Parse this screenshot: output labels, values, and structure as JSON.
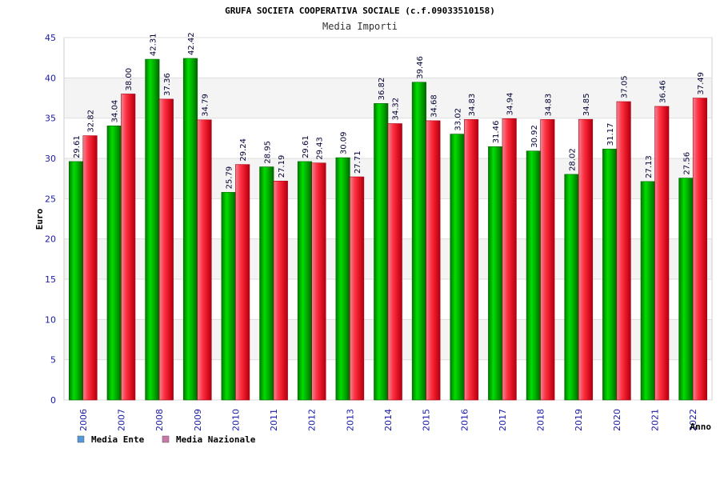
{
  "chart_data": {
    "type": "bar",
    "title": "GRUFA SOCIETA COOPERATIVA SOCIALE (c.f.09033510158)",
    "subtitle": "Media Importi",
    "xlabel": "Anno",
    "ylabel": "Euro",
    "ylim": [
      0,
      45
    ],
    "yticks": [
      "0",
      "5",
      "10",
      "15",
      "20",
      "25",
      "30",
      "35",
      "40",
      "45"
    ],
    "grid": true,
    "legend_position": "bottom-left",
    "categories": [
      "2006",
      "2007",
      "2008",
      "2009",
      "2010",
      "2011",
      "2012",
      "2013",
      "2014",
      "2015",
      "2016",
      "2017",
      "2018",
      "2019",
      "2020",
      "2021",
      "2022"
    ],
    "series": [
      {
        "name": "Media Ente",
        "color": "#00aa00",
        "legend_color": "#5599dd",
        "values": [
          29.61,
          34.04,
          42.31,
          42.42,
          25.79,
          28.95,
          29.61,
          30.09,
          36.82,
          39.46,
          33.02,
          31.46,
          30.92,
          28.02,
          31.17,
          27.13,
          27.56
        ],
        "labels": [
          "29.61",
          "34.04",
          "42.31",
          "42.42",
          "25.79",
          "28.95",
          "29.61",
          "30.09",
          "36.82",
          "39.46",
          "33.02",
          "31.46",
          "30.92",
          "28.02",
          "31.17",
          "27.13",
          "27.56"
        ]
      },
      {
        "name": "Media Nazionale",
        "color": "#dd2233",
        "legend_color": "#cc77aa",
        "values": [
          32.82,
          38.0,
          37.36,
          34.79,
          29.24,
          27.19,
          29.43,
          27.71,
          34.32,
          34.68,
          34.83,
          34.94,
          34.83,
          34.85,
          37.05,
          36.46,
          37.49
        ],
        "labels": [
          "32.82",
          "38.00",
          "37.36",
          "34.79",
          "29.24",
          "27.19",
          "29.43",
          "27.71",
          "34.32",
          "34.68",
          "34.83",
          "34.94",
          "34.83",
          "34.85",
          "37.05",
          "36.46",
          "37.49"
        ]
      }
    ]
  }
}
